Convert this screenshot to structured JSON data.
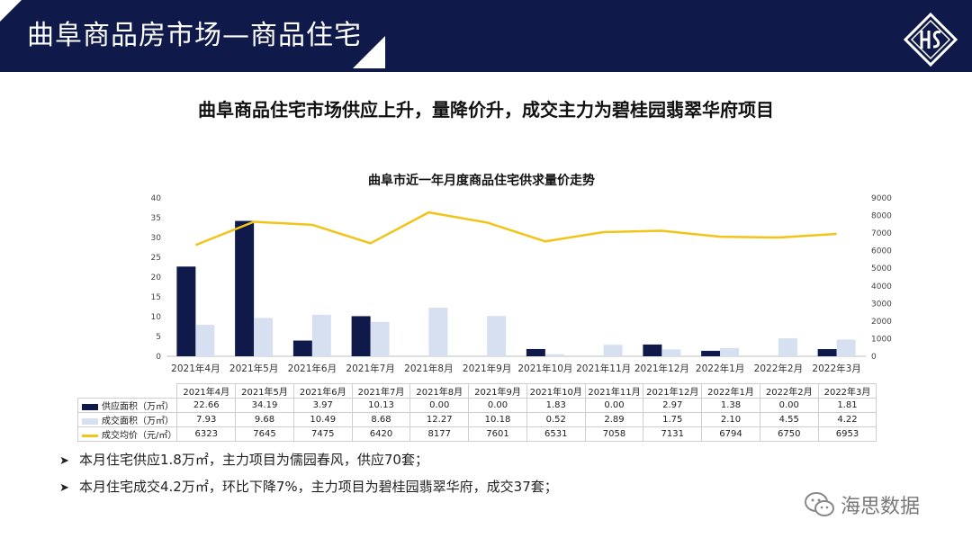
{
  "header": {
    "title": "曲阜商品房市场—商品住宅",
    "logo_icon": "hs-diamond-logo-icon"
  },
  "subtitle": "曲阜商品住宅市场供应上升，量降价升，成交主力为碧桂园翡翠华府项目",
  "colors": {
    "header_bg": "#0f1a4a",
    "supply": "#0f1a4a",
    "deal": "#d6e0f0",
    "price": "#f2c418"
  },
  "chart_data": {
    "type": "bar",
    "title": "曲阜市近一年月度商品住宅供求量价走势",
    "categories": [
      "2021年4月",
      "2021年5月",
      "2021年6月",
      "2021年7月",
      "2021年8月",
      "2021年9月",
      "2021年10月",
      "2021年11月",
      "2021年12月",
      "2022年1月",
      "2022年2月",
      "2022年3月"
    ],
    "series": [
      {
        "name": "供应面积（万㎡）",
        "type": "bar",
        "axis": "left",
        "values": [
          22.66,
          34.19,
          3.97,
          10.13,
          0.0,
          0.0,
          1.83,
          0.0,
          2.97,
          1.38,
          0.0,
          1.81
        ]
      },
      {
        "name": "成交面积（万㎡）",
        "type": "bar",
        "axis": "left",
        "values": [
          7.93,
          9.68,
          10.49,
          8.68,
          12.27,
          10.18,
          0.52,
          2.89,
          1.75,
          2.1,
          4.55,
          4.22
        ]
      },
      {
        "name": "成交均价（元/㎡）",
        "type": "line",
        "axis": "right",
        "values": [
          6323,
          7645,
          7475,
          6420,
          8177,
          7601,
          6531,
          7058,
          7131,
          6794,
          6750,
          6953
        ]
      }
    ],
    "table_values": [
      [
        "22.66",
        "34.19",
        "3.97",
        "10.13",
        "0.00",
        "0.00",
        "1.83",
        "0.00",
        "2.97",
        "1.38",
        "0.00",
        "1.81"
      ],
      [
        "7.93",
        "9.68",
        "10.49",
        "8.68",
        "12.27",
        "10.18",
        "0.52",
        "2.89",
        "1.75",
        "2.10",
        "4.55",
        "4.22"
      ],
      [
        "6323",
        "7645",
        "7475",
        "6420",
        "8177",
        "7601",
        "6531",
        "7058",
        "7131",
        "6794",
        "6750",
        "6953"
      ]
    ],
    "ylim_left": [
      0,
      40
    ],
    "yticks_left": [
      "0",
      "5",
      "10",
      "15",
      "20",
      "25",
      "30",
      "35",
      "40"
    ],
    "ylim_right": [
      0,
      9000
    ],
    "yticks_right": [
      "0",
      "1000",
      "2000",
      "3000",
      "4000",
      "5000",
      "6000",
      "7000",
      "8000",
      "9000"
    ],
    "legend": "bottom-table"
  },
  "bullets": [
    "本月住宅供应1.8万㎡，主力项目为儒园春风，供应70套；",
    "本月住宅成交4.2万㎡，环比下降7%，主力项目为碧桂园翡翠华府，成交37套；"
  ],
  "watermark": {
    "text": "海思数据",
    "icon": "wechat-icon"
  }
}
